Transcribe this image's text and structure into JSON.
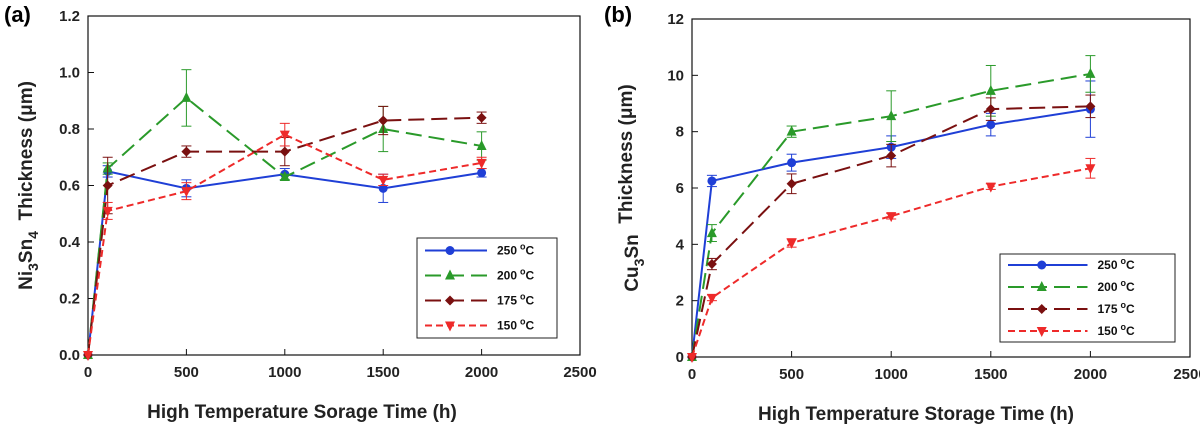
{
  "chart_data": [
    {
      "panel": "(a)",
      "type": "line",
      "ylabel_main": "Ni",
      "ylabel_sub1": "3",
      "ylabel_mid": "Sn",
      "ylabel_sub2": "4",
      "ylabel_rest": "  Thickness (μm)",
      "xlabel": "High Temperature Sorage Time (h)",
      "xlim": [
        0,
        2500
      ],
      "ylim": [
        0,
        1.2
      ],
      "xticks": [
        "0",
        "500",
        "1000",
        "1500",
        "2000",
        "2500"
      ],
      "yticks": [
        "0.0",
        "0.2",
        "0.4",
        "0.6",
        "0.8",
        "1.0",
        "1.2"
      ],
      "xtick_values": [
        0,
        500,
        1000,
        1500,
        2000,
        2500
      ],
      "ytick_values": [
        0,
        0.2,
        0.4,
        0.6,
        0.8,
        1.0,
        1.2
      ],
      "legend_position": "lower-right",
      "x": [
        0,
        100,
        500,
        1000,
        1500,
        2000
      ],
      "series": [
        {
          "name": "250",
          "unit": "C",
          "color": "#1f3fd6",
          "marker": "circle",
          "dash": "solid",
          "values": [
            0,
            0.65,
            0.59,
            0.64,
            0.59,
            0.645
          ],
          "err": [
            0,
            0.02,
            0.03,
            0.02,
            0.05,
            0.015
          ]
        },
        {
          "name": "200",
          "unit": "C",
          "color": "#2a9a2a",
          "marker": "triangle-up",
          "dash": "long",
          "values": [
            0,
            0.66,
            0.91,
            0.63,
            0.8,
            0.74
          ],
          "err": [
            0,
            0.02,
            0.1,
            0.01,
            0.08,
            0.05
          ]
        },
        {
          "name": "175",
          "unit": "C",
          "color": "#7a1010",
          "marker": "diamond",
          "dash": "long",
          "values": [
            0,
            0.6,
            0.72,
            0.72,
            0.83,
            0.84
          ],
          "err": [
            0,
            0.1,
            0.02,
            0.05,
            0.05,
            0.02
          ]
        },
        {
          "name": "150",
          "unit": "C",
          "color": "#ee2a2a",
          "marker": "triangle-down",
          "dash": "short",
          "values": [
            0,
            0.51,
            0.58,
            0.78,
            0.62,
            0.68
          ],
          "err": [
            0,
            0.03,
            0.03,
            0.04,
            0.02,
            0.02
          ]
        }
      ]
    },
    {
      "panel": "(b)",
      "type": "line",
      "ylabel_main": "Cu",
      "ylabel_sub1": "3",
      "ylabel_mid": "Sn",
      "ylabel_sub2": "",
      "ylabel_rest": "  Thickness (μm)",
      "xlabel": "High Temperature Storage Time (h)",
      "xlim": [
        0,
        2500
      ],
      "ylim": [
        0,
        12
      ],
      "xticks": [
        "0",
        "500",
        "1000",
        "1500",
        "2000",
        "2500"
      ],
      "yticks": [
        "0",
        "2",
        "4",
        "6",
        "8",
        "10",
        "12"
      ],
      "xtick_values": [
        0,
        500,
        1000,
        1500,
        2000,
        2500
      ],
      "ytick_values": [
        0,
        2,
        4,
        6,
        8,
        10,
        12
      ],
      "legend_position": "lower-right",
      "x": [
        0,
        100,
        500,
        1000,
        1500,
        2000
      ],
      "series": [
        {
          "name": "250",
          "unit": "C",
          "color": "#1f3fd6",
          "marker": "circle",
          "dash": "solid",
          "values": [
            0,
            6.25,
            6.9,
            7.45,
            8.25,
            8.8
          ],
          "err": [
            0,
            0.2,
            0.3,
            0.4,
            0.4,
            1.0
          ]
        },
        {
          "name": "200",
          "unit": "C",
          "color": "#2a9a2a",
          "marker": "triangle-up",
          "dash": "long",
          "values": [
            0,
            4.4,
            8.0,
            8.55,
            9.45,
            10.05
          ],
          "err": [
            0,
            0.3,
            0.2,
            0.9,
            0.9,
            0.65
          ]
        },
        {
          "name": "175",
          "unit": "C",
          "color": "#7a1010",
          "marker": "diamond",
          "dash": "long",
          "values": [
            0,
            3.3,
            6.15,
            7.15,
            8.8,
            8.9
          ],
          "err": [
            0,
            0.2,
            0.35,
            0.4,
            0.4,
            0.4
          ]
        },
        {
          "name": "150",
          "unit": "C",
          "color": "#ee2a2a",
          "marker": "triangle-down",
          "dash": "short",
          "values": [
            0,
            2.1,
            4.05,
            5.0,
            6.05,
            6.7
          ],
          "err": [
            0,
            0.1,
            0.15,
            0.1,
            0.1,
            0.35
          ]
        }
      ]
    }
  ]
}
